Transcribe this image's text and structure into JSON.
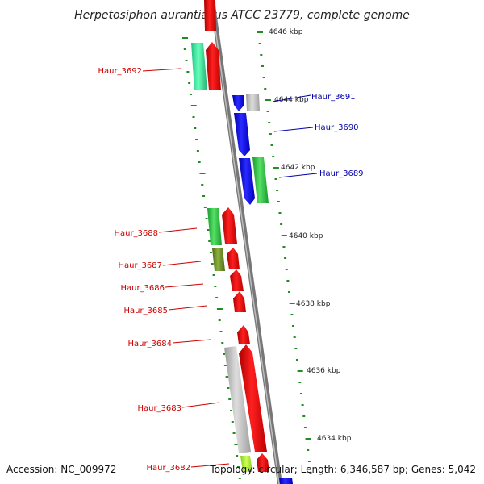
{
  "title": "Herpetosiphon aurantiacus ATCC 23779, complete genome",
  "footer": {
    "accession": "Accession: NC_009972",
    "stats": "Topology: circular; Length: 6,346,587 bp; Genes: 5,042"
  },
  "colors": {
    "forward_cds": "#ff0000",
    "reverse_cds": "#0000ff",
    "rna": "#22cc44",
    "other": "#bbbbbb",
    "olive": "#6b8e23",
    "tick": "#228b22",
    "backbone": "#808080",
    "forward_label": "#cc0000",
    "reverse_label": "#0000aa"
  },
  "kbp_ticks": [
    "4646 kbp",
    "4644 kbp",
    "4642 kbp",
    "4640 kbp",
    "4638 kbp",
    "4636 kbp",
    "4634 kbp"
  ],
  "genes_left": [
    {
      "label": "Haur_3692"
    },
    {
      "label": "Haur_3688"
    },
    {
      "label": "Haur_3687"
    },
    {
      "label": "Haur_3686"
    },
    {
      "label": "Haur_3685"
    },
    {
      "label": "Haur_3684"
    },
    {
      "label": "Haur_3683"
    },
    {
      "label": "Haur_3682"
    }
  ],
  "genes_right": [
    {
      "label": "Haur_3691"
    },
    {
      "label": "Haur_3690"
    },
    {
      "label": "Haur_3689"
    }
  ]
}
